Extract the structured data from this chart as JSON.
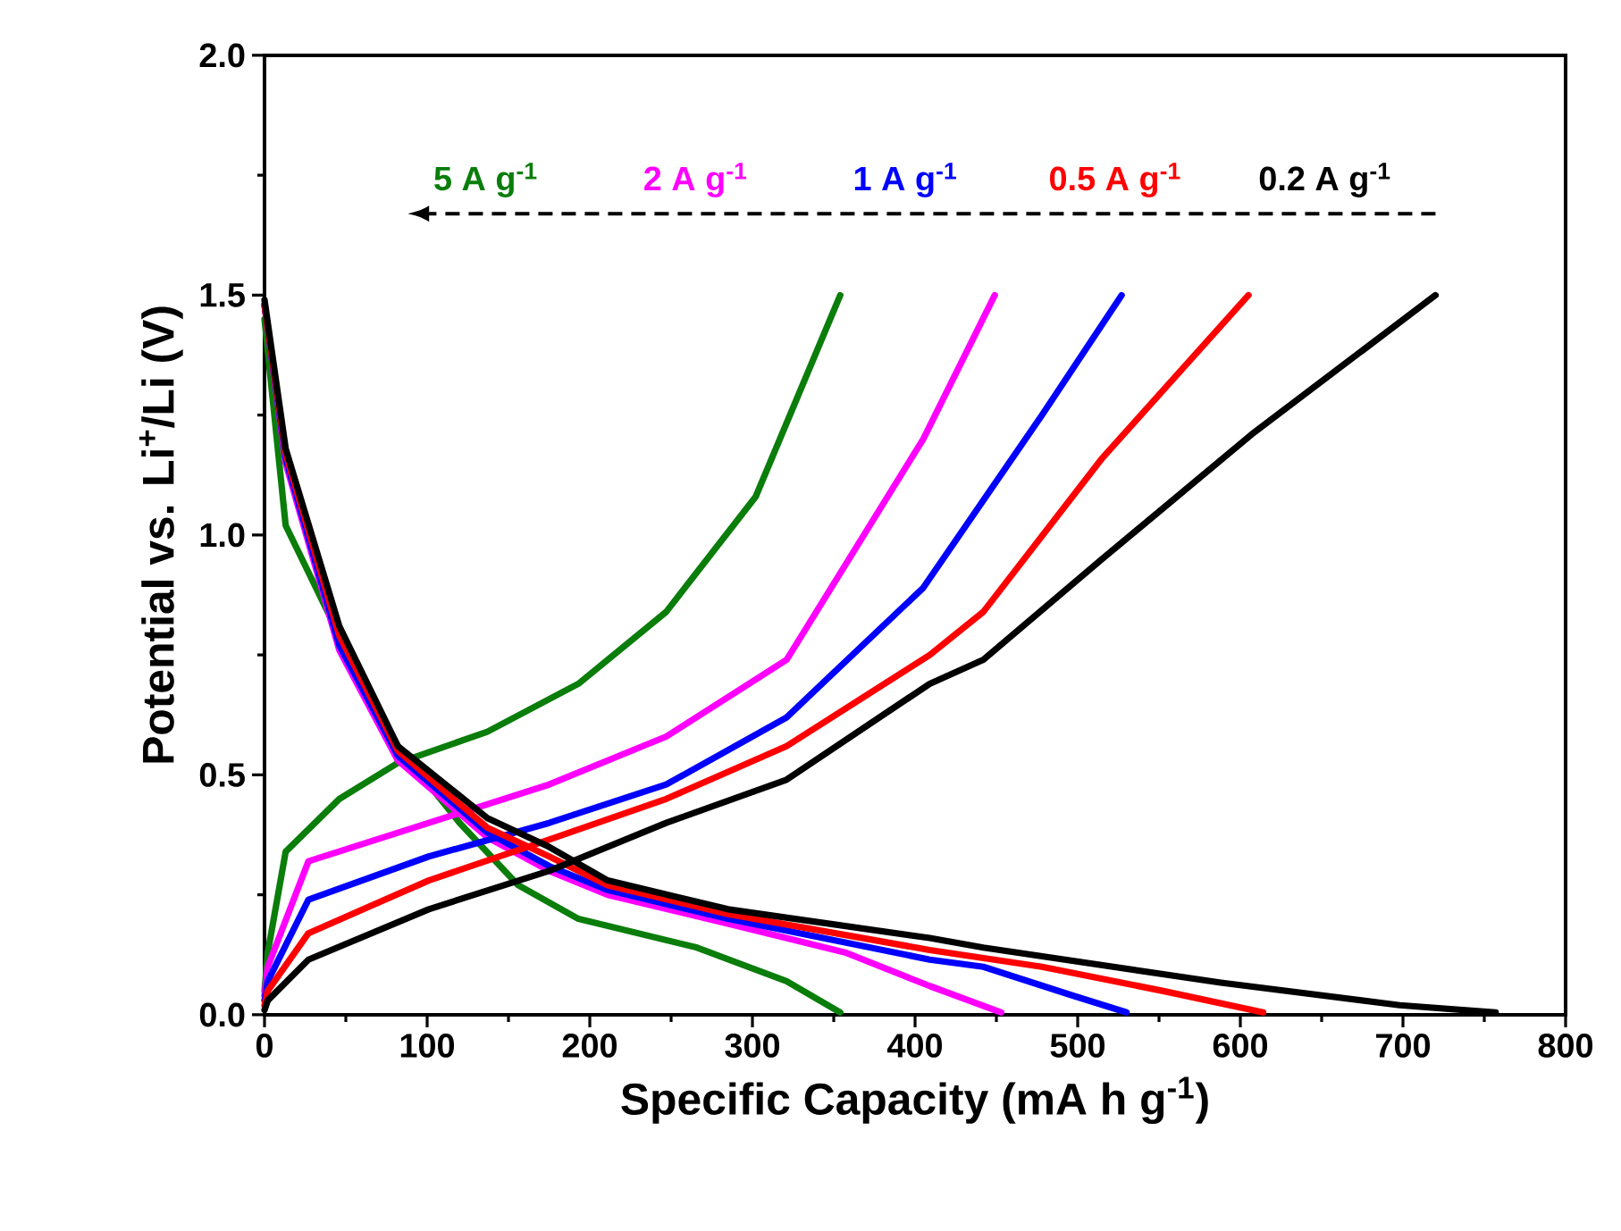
{
  "chart_data": {
    "type": "line",
    "xlabel": "Specific Capacity (mA h g$^{-1}$)",
    "ylabel": "Potential vs. Li$^{+}$/Li (V)",
    "xlim": [
      0,
      800
    ],
    "ylim": [
      0,
      2.0
    ],
    "xticks": [
      0,
      100,
      200,
      300,
      400,
      500,
      600,
      700,
      800
    ],
    "yticks": [
      {
        "value": 0,
        "label": "0.0"
      },
      {
        "value": 0.5,
        "label": "0.5"
      },
      {
        "value": 1.0,
        "label": "1.0"
      },
      {
        "value": 1.5,
        "label": "1.5"
      },
      {
        "value": 2.0,
        "label": "2.0"
      }
    ],
    "line_style": "solid",
    "series": [
      {
        "name": "5 A g$^{-1}$",
        "color": "#0a7d0a",
        "x": [
          0,
          2,
          13,
          46,
          82,
          137,
          193,
          247,
          302,
          354
        ],
        "values": [
          0.05,
          0.13,
          0.34,
          0.45,
          0.525,
          0.59,
          0.69,
          0.84,
          1.08,
          1.5
        ]
      },
      {
        "color": "#0a7d0a",
        "x": [
          0,
          13,
          46,
          82,
          120,
          156,
          193,
          266,
          321,
          354
        ],
        "values": [
          1.45,
          1.02,
          0.79,
          0.56,
          0.4,
          0.27,
          0.2,
          0.14,
          0.07,
          0.005
        ]
      },
      {
        "name": "2 A g$^{-1}$",
        "color": "#ff00ff",
        "x": [
          0,
          2,
          27,
          101,
          175,
          247,
          321,
          332,
          405,
          449
        ],
        "values": [
          0.04,
          0.1,
          0.32,
          0.4,
          0.48,
          0.58,
          0.74,
          0.8,
          1.2,
          1.5
        ]
      },
      {
        "color": "#ff00ff",
        "x": [
          0,
          13,
          46,
          82,
          137,
          175,
          211,
          285,
          357,
          409,
          453
        ],
        "values": [
          1.48,
          1.15,
          0.76,
          0.53,
          0.37,
          0.3,
          0.25,
          0.19,
          0.13,
          0.06,
          0.005
        ]
      },
      {
        "name": "1 A g$^{-1}$",
        "color": "#0000ff",
        "x": [
          0,
          2,
          27,
          101,
          175,
          247,
          321,
          405,
          478,
          527
        ],
        "values": [
          0.03,
          0.07,
          0.24,
          0.33,
          0.4,
          0.48,
          0.62,
          0.89,
          1.25,
          1.5
        ]
      },
      {
        "color": "#0000ff",
        "x": [
          0,
          13,
          46,
          82,
          137,
          175,
          211,
          285,
          409,
          442,
          497,
          530
        ],
        "values": [
          1.48,
          1.16,
          0.77,
          0.54,
          0.38,
          0.31,
          0.26,
          0.2,
          0.115,
          0.1,
          0.04,
          0.005
        ]
      },
      {
        "name": "0.5 A g$^{-1}$",
        "color": "#ff0000",
        "x": [
          0,
          2,
          27,
          101,
          175,
          247,
          321,
          409,
          442,
          515,
          605
        ],
        "values": [
          0.02,
          0.05,
          0.17,
          0.28,
          0.365,
          0.45,
          0.56,
          0.75,
          0.84,
          1.16,
          1.5
        ]
      },
      {
        "color": "#ff0000",
        "x": [
          0,
          13,
          46,
          82,
          137,
          175,
          211,
          285,
          409,
          478,
          552,
          614
        ],
        "values": [
          1.48,
          1.17,
          0.79,
          0.55,
          0.39,
          0.33,
          0.27,
          0.21,
          0.135,
          0.1,
          0.05,
          0.005
        ]
      },
      {
        "name": "0.2 A g$^{-1}$",
        "color": "#000000",
        "x": [
          0,
          2,
          27,
          101,
          175,
          247,
          321,
          409,
          442,
          515,
          607,
          720
        ],
        "values": [
          0.01,
          0.03,
          0.115,
          0.22,
          0.3,
          0.4,
          0.49,
          0.69,
          0.74,
          0.95,
          1.21,
          1.5
        ]
      },
      {
        "color": "#000000",
        "x": [
          0,
          13,
          46,
          82,
          137,
          175,
          211,
          285,
          409,
          442,
          588,
          698,
          757
        ],
        "values": [
          1.49,
          1.18,
          0.81,
          0.56,
          0.41,
          0.35,
          0.28,
          0.22,
          0.16,
          0.14,
          0.067,
          0.02,
          0.005
        ]
      }
    ]
  }
}
